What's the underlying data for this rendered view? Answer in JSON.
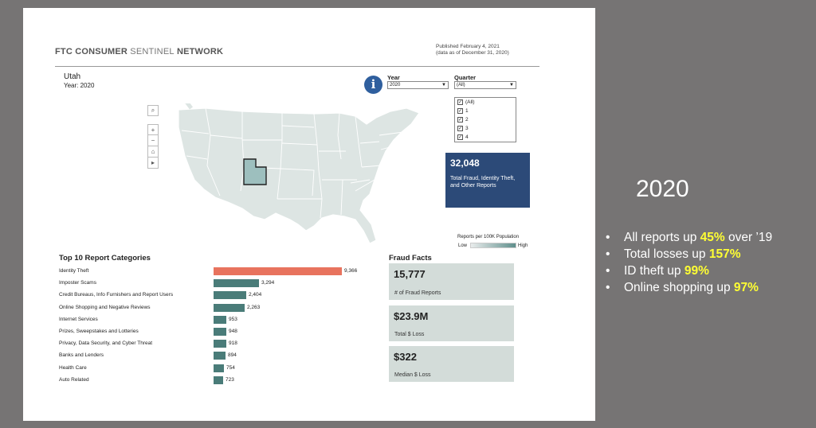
{
  "header": {
    "brand_bold_1": "FTC CONSUMER",
    "brand_light": "SENTINEL",
    "brand_bold_2": "NETWORK",
    "published_line1": "Published February 4, 2021",
    "published_line2": "(data as of December 31, 2020)"
  },
  "region": {
    "state": "Utah",
    "year_label": "Year: 2020"
  },
  "filters": {
    "year_label": "Year",
    "year_value": "2020",
    "quarter_label": "Quarter",
    "quarter_value": "(All)",
    "quarter_options": [
      "(All)",
      "1",
      "2",
      "3",
      "4"
    ]
  },
  "info_glyph": "i",
  "map_controls": {
    "search_glyph": "⌕",
    "zoom_in_glyph": "+",
    "zoom_out_glyph": "−",
    "home_glyph": "⌂",
    "play_glyph": "▸"
  },
  "total": {
    "value": "32,048",
    "description": "Total Fraud, Identity Theft, and Other Reports"
  },
  "legend": {
    "title": "Reports per 100K Population",
    "low": "Low",
    "high": "High"
  },
  "top10": {
    "title": "Top 10 Report Categories",
    "max": 9366,
    "items": [
      {
        "label": "Identity Theft",
        "value": 9366,
        "display": "9,366"
      },
      {
        "label": "Imposter Scams",
        "value": 3294,
        "display": "3,294"
      },
      {
        "label": "Credit Bureaus, Info Furnishers and Report Users",
        "value": 2404,
        "display": "2,404"
      },
      {
        "label": "Online Shopping and Negative Reviews",
        "value": 2263,
        "display": "2,263"
      },
      {
        "label": "Internet Services",
        "value": 953,
        "display": "953"
      },
      {
        "label": "Prizes, Sweepstakes and Lotteries",
        "value": 948,
        "display": "948"
      },
      {
        "label": "Privacy, Data Security, and Cyber Threat",
        "value": 918,
        "display": "918"
      },
      {
        "label": "Banks and Lenders",
        "value": 894,
        "display": "894"
      },
      {
        "label": "Health Care",
        "value": 754,
        "display": "754"
      },
      {
        "label": "Auto Related",
        "value": 723,
        "display": "723"
      }
    ]
  },
  "fraud_facts": {
    "title": "Fraud Facts",
    "items": [
      {
        "value": "15,777",
        "label": "# of Fraud Reports"
      },
      {
        "value": "$23.9M",
        "label": "Total $ Loss"
      },
      {
        "value": "$322",
        "label": "Median $ Loss"
      }
    ]
  },
  "slide": {
    "year": "2020",
    "bullets": [
      {
        "pre": "All reports up ",
        "hl": "45%",
        "post": " over ’19"
      },
      {
        "pre": "Total losses up ",
        "hl": "157%",
        "post": ""
      },
      {
        "pre": "ID theft up ",
        "hl": "99%",
        "post": ""
      },
      {
        "pre": "Online shopping up ",
        "hl": "97%",
        "post": ""
      }
    ]
  },
  "colors": {
    "bar_highlight": "#e8735e",
    "bar_default": "#4a7c79",
    "total_box": "#2c4a78",
    "fact_box": "#d3dcd9",
    "utah_fill": "#9dbfbe",
    "map_fill": "#dde5e3",
    "highlight_text": "#ffff33"
  }
}
